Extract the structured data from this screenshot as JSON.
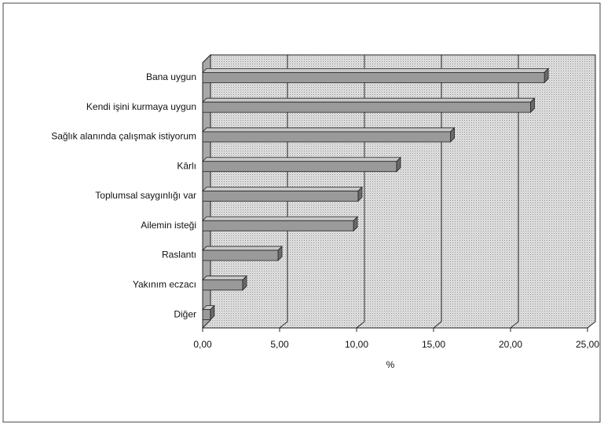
{
  "chart_data": {
    "type": "bar",
    "orientation": "horizontal",
    "xlabel": "%",
    "categories": [
      "Bana uygun",
      "Kendi işini kurmaya uygun",
      "Sağlık alanında çalışmak istiyorum",
      "Kârlı",
      "Toplumsal saygınlığı var",
      "Ailemin isteği",
      "Raslantı",
      "Yakınım eczacı",
      "Diğer"
    ],
    "values": [
      22.2,
      21.3,
      16.1,
      12.6,
      10.1,
      9.8,
      4.9,
      2.6,
      0.5
    ],
    "color": "#9a9a9a",
    "xlim": [
      0,
      25
    ],
    "xticks": [
      {
        "value": 0,
        "label": "0,00"
      },
      {
        "value": 5,
        "label": "5,00"
      },
      {
        "value": 10,
        "label": "10,00"
      },
      {
        "value": 15,
        "label": "15,00"
      },
      {
        "value": 20,
        "label": "20,00"
      },
      {
        "value": 25,
        "label": "25,00"
      }
    ],
    "grid": true
  }
}
